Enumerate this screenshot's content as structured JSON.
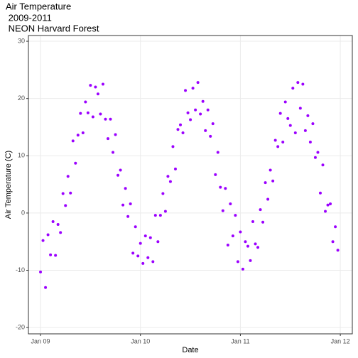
{
  "chart_data": {
    "type": "scatter",
    "title": [
      "Air Temperature",
      " 2009-2011",
      " NEON Harvard Forest"
    ],
    "x_label": "Date",
    "y_label": "Air Temperature (C)",
    "color": "#9b00ff",
    "grid": true,
    "xlim": [
      2008.879,
      2012.12
    ],
    "ylim": [
      -21.1,
      31
    ],
    "xticks": [
      {
        "value": 2009,
        "label": "Jan 09"
      },
      {
        "value": 2010,
        "label": "Jan 10"
      },
      {
        "value": 2011,
        "label": "Jan 11"
      },
      {
        "value": 2012,
        "label": "Jan 12"
      }
    ],
    "yticks": [
      -20,
      -10,
      0,
      10,
      20,
      30
    ],
    "x": [
      2009,
      2009.025,
      2009.05,
      2009.075,
      2009.1,
      2009.125,
      2009.15,
      2009.175,
      2009.2,
      2009.225,
      2009.25,
      2009.275,
      2009.3,
      2009.325,
      2009.35,
      2009.375,
      2009.4,
      2009.425,
      2009.45,
      2009.475,
      2009.5,
      2009.525,
      2009.55,
      2009.575,
      2009.6,
      2009.625,
      2009.65,
      2009.675,
      2009.7,
      2009.725,
      2009.75,
      2009.775,
      2009.8,
      2009.825,
      2009.85,
      2009.875,
      2009.9,
      2009.925,
      2009.95,
      2009.975,
      2010,
      2010.025,
      2010.05,
      2010.075,
      2010.1,
      2010.125,
      2010.15,
      2010.175,
      2010.2,
      2010.225,
      2010.25,
      2010.275,
      2010.3,
      2010.325,
      2010.35,
      2010.375,
      2010.4,
      2010.425,
      2010.45,
      2010.475,
      2010.5,
      2010.525,
      2010.55,
      2010.575,
      2010.6,
      2010.625,
      2010.65,
      2010.675,
      2010.7,
      2010.725,
      2010.75,
      2010.775,
      2010.8,
      2010.825,
      2010.85,
      2010.875,
      2010.9,
      2010.925,
      2010.95,
      2010.975,
      2011,
      2011.025,
      2011.05,
      2011.075,
      2011.1,
      2011.125,
      2011.15,
      2011.175,
      2011.2,
      2011.225,
      2011.25,
      2011.275,
      2011.3,
      2011.325,
      2011.35,
      2011.375,
      2011.4,
      2011.425,
      2011.45,
      2011.475,
      2011.5,
      2011.525,
      2011.55,
      2011.575,
      2011.6,
      2011.625,
      2011.65,
      2011.675,
      2011.7,
      2011.725,
      2011.75,
      2011.775,
      2011.8,
      2011.825,
      2011.85,
      2011.875,
      2011.9,
      2011.925,
      2011.95,
      2011.975
    ],
    "values": [
      -10.3,
      -4.8,
      -13,
      -3.8,
      -7.3,
      -1.5,
      -7.4,
      -2,
      -3.4,
      3.4,
      1.3,
      6.4,
      3.5,
      12.6,
      8.7,
      13.6,
      17.4,
      14,
      19.4,
      17.5,
      22.3,
      16.8,
      22,
      20.8,
      17.3,
      22.5,
      16.4,
      13,
      16.4,
      10.6,
      13.7,
      6.6,
      7.5,
      1.4,
      4.3,
      -0.6,
      1.6,
      -7,
      -2.4,
      -7.5,
      -5.3,
      -8.8,
      -4,
      -7.8,
      -4.3,
      -8.5,
      -0.4,
      -5,
      -0.4,
      3.4,
      0.3,
      6.4,
      5.5,
      11.6,
      7.7,
      14.6,
      15.4,
      14,
      21.4,
      17.5,
      16.3,
      21.8,
      18,
      22.8,
      17.3,
      19.5,
      14.4,
      18,
      13.4,
      15.6,
      6.7,
      10.6,
      4.5,
      0.4,
      4.3,
      -5.6,
      1.6,
      -4,
      -0.4,
      -8.5,
      -3.3,
      -9.8,
      -5,
      -5.8,
      -8.3,
      -1.5,
      -5.4,
      -6,
      0.6,
      -1.6,
      5.3,
      2.4,
      7.5,
      5.6,
      12.7,
      11.6,
      17.4,
      12.4,
      19.4,
      16.5,
      15.3,
      21.8,
      14,
      22.8,
      18.3,
      22.5,
      14.4,
      17,
      12.4,
      15.6,
      9.7,
      10.6,
      3.5,
      8.4,
      0.3,
      1.4,
      1.6,
      -5,
      -2.4,
      -6.5
    ]
  }
}
